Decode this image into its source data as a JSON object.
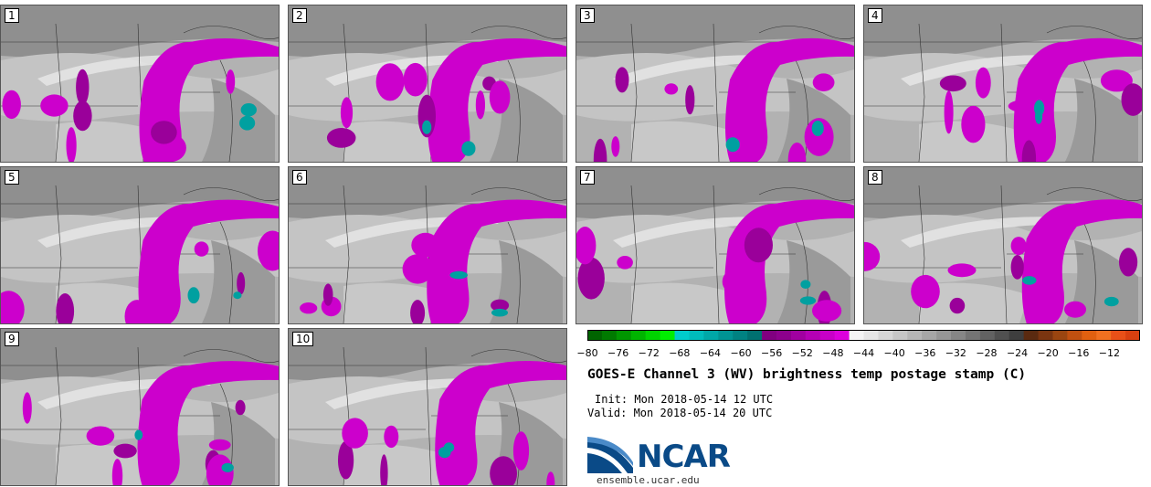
{
  "panels": [
    {
      "label": "1"
    },
    {
      "label": "2"
    },
    {
      "label": "3"
    },
    {
      "label": "4"
    },
    {
      "label": "5"
    },
    {
      "label": "6"
    },
    {
      "label": "7"
    },
    {
      "label": "8"
    },
    {
      "label": "9"
    },
    {
      "label": "10"
    }
  ],
  "colorbar": {
    "ticks": [
      "−80",
      "−76",
      "−72",
      "−68",
      "−64",
      "−60",
      "−56",
      "−52",
      "−48",
      "−44",
      "−40",
      "−36",
      "−32",
      "−28",
      "−24",
      "−20",
      "−16",
      "−12"
    ],
    "colors": [
      "#006400",
      "#007a00",
      "#009600",
      "#00b400",
      "#00d200",
      "#00ee00",
      "#00cccc",
      "#00bcbc",
      "#00a8a8",
      "#009494",
      "#008282",
      "#007070",
      "#800080",
      "#8c008c",
      "#a000a0",
      "#b400b4",
      "#c800c8",
      "#dc00dc",
      "#f4f4f4",
      "#e6e6e6",
      "#d6d6d6",
      "#c6c6c6",
      "#b6b6b6",
      "#a6a6a6",
      "#969696",
      "#868686",
      "#747474",
      "#626262",
      "#505050",
      "#3e3e3e",
      "#5a2a10",
      "#7a3510",
      "#9a4510",
      "#c05010",
      "#e06010",
      "#f07020",
      "#e85018",
      "#d84010"
    ]
  },
  "title": "GOES-E Channel 3 (WV) brightness temp postage stamp (C)",
  "init": "Init: Mon 2018-05-14 12 UTC",
  "valid": "Valid: Mon 2018-05-14 20 UTC",
  "logo": {
    "text": "NCAR",
    "color": "#0a4a87"
  },
  "website": "ensemble.ucar.edu"
}
